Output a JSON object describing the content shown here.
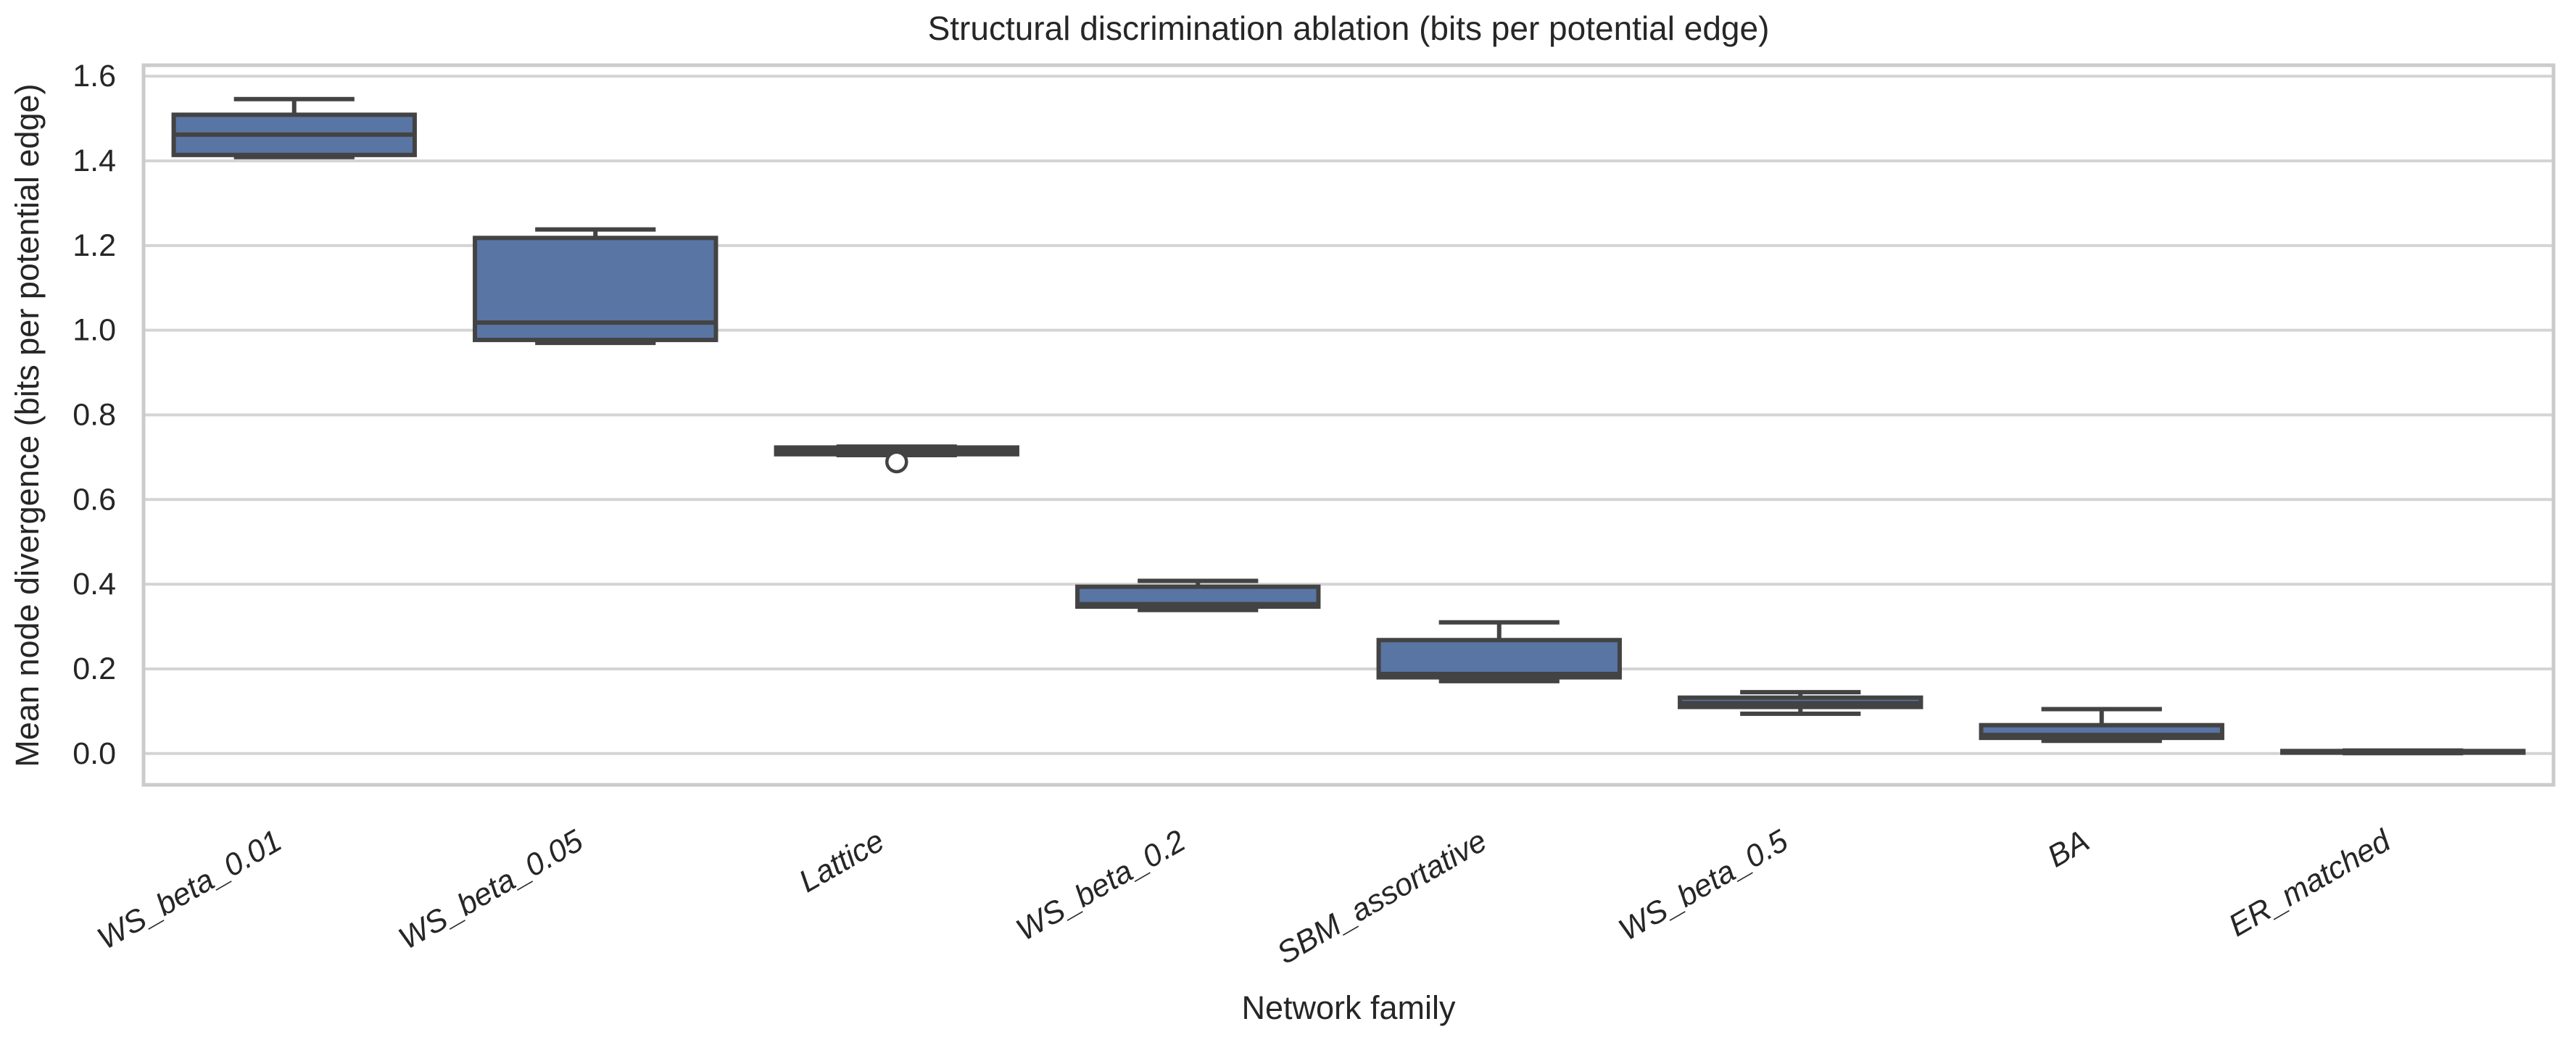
{
  "chart_data": {
    "type": "boxplot",
    "title": "Structural discrimination ablation (bits per potential edge)",
    "xlabel": "Network family",
    "ylabel": "Mean node divergence (bits per potential edge)",
    "ylim": [
      -0.074,
      1.626
    ],
    "yticks": [
      0.0,
      0.2,
      0.4,
      0.6,
      0.8,
      1.0,
      1.2,
      1.4,
      1.6
    ],
    "grid": "horizontal-only",
    "legend": "none",
    "categories": [
      "WS_beta_0.01",
      "WS_beta_0.05",
      "Lattice",
      "WS_beta_0.2",
      "SBM_assortative",
      "WS_beta_0.5",
      "BA",
      "ER_matched"
    ],
    "x_tick_rotation_deg": 30,
    "boxes": [
      {
        "category": "WS_beta_0.01",
        "whisker_low": 1.409,
        "q1": 1.414,
        "median": 1.462,
        "q3": 1.509,
        "whisker_high": 1.546,
        "outliers": []
      },
      {
        "category": "WS_beta_0.05",
        "whisker_low": 0.97,
        "q1": 0.977,
        "median": 1.018,
        "q3": 1.218,
        "whisker_high": 1.238,
        "outliers": []
      },
      {
        "category": "Lattice",
        "whisker_low": 0.705,
        "q1": 0.707,
        "median": 0.715,
        "q3": 0.723,
        "whisker_high": 0.725,
        "outliers": [
          0.689
        ]
      },
      {
        "category": "WS_beta_0.2",
        "whisker_low": 0.339,
        "q1": 0.347,
        "median": 0.353,
        "q3": 0.394,
        "whisker_high": 0.408,
        "outliers": []
      },
      {
        "category": "SBM_assortative",
        "whisker_low": 0.171,
        "q1": 0.18,
        "median": 0.188,
        "q3": 0.268,
        "whisker_high": 0.31,
        "outliers": []
      },
      {
        "category": "WS_beta_0.5",
        "whisker_low": 0.094,
        "q1": 0.11,
        "median": 0.119,
        "q3": 0.132,
        "whisker_high": 0.145,
        "outliers": []
      },
      {
        "category": "BA",
        "whisker_low": 0.03,
        "q1": 0.037,
        "median": 0.044,
        "q3": 0.067,
        "whisker_high": 0.105,
        "outliers": []
      },
      {
        "category": "ER_matched",
        "whisker_low": 0.001,
        "q1": 0.002,
        "median": 0.004,
        "q3": 0.006,
        "whisker_high": 0.007,
        "outliers": []
      }
    ],
    "colors": {
      "box_fill": "#5875A4",
      "box_line": "#434343",
      "grid_line": "#D4D4D4",
      "spine": "#CBCBCB",
      "text": "#262626",
      "background": "#FFFFFF"
    }
  }
}
